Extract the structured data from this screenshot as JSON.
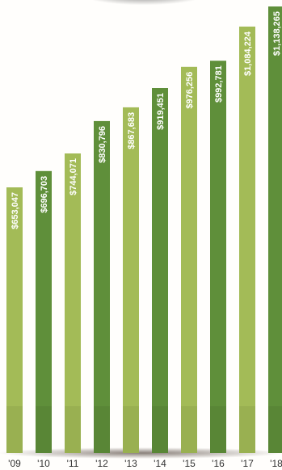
{
  "chart_data": {
    "type": "bar",
    "title": "",
    "xlabel": "",
    "ylabel": "",
    "categories": [
      "'09",
      "'10",
      "'11",
      "'12",
      "'13",
      "'14",
      "'15",
      "'16",
      "'17",
      "'18"
    ],
    "values": [
      653047,
      696703,
      744071,
      830796,
      867683,
      919451,
      976256,
      992781,
      1084224,
      1138265
    ],
    "value_labels": [
      "$653,047",
      "$696,703",
      "$744,071",
      "$830,796",
      "$867,683",
      "$919,451",
      "$976,256",
      "$992,781",
      "$1,084,224",
      "$1,138,265"
    ],
    "bar_colors": [
      "#a3bb57",
      "#5f8f3a",
      "#a3bb57",
      "#5f8f3a",
      "#a3bb57",
      "#5f8f3a",
      "#a3bb57",
      "#5f8f3a",
      "#a3bb57",
      "#5f8f3a"
    ],
    "label_color": "#ffffff",
    "tick_color": "#333333",
    "grid": false,
    "legend": "none"
  }
}
